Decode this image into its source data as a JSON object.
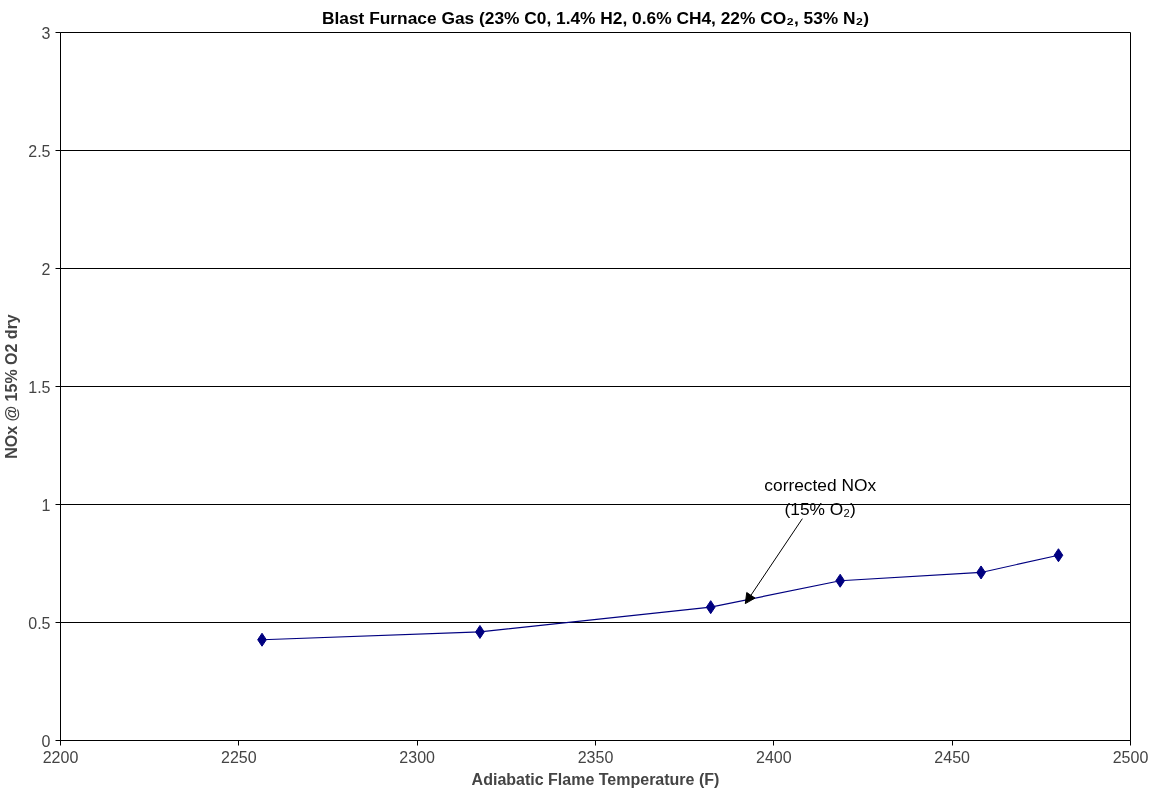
{
  "chart_data": {
    "type": "line",
    "title": "Blast Furnace Gas (23% C0, 1.4% H2, 0.6% CH4, 22% CO₂, 53% N₂)",
    "xlabel": "Adiabatic Flame Temperature (F)",
    "ylabel": "NOx @ 15% O2 dry",
    "x": [
      2256.5,
      2317.6,
      2382.3,
      2418.6,
      2458.1,
      2479.8
    ],
    "series": [
      {
        "color": "#000080",
        "values": [
          0.427,
          0.46,
          0.565,
          0.677,
          0.712,
          0.785
        ]
      }
    ],
    "xlim": [
      2200,
      2500
    ],
    "xticks": [
      2200,
      2250,
      2300,
      2350,
      2400,
      2450,
      2500
    ],
    "ylim": [
      0,
      3
    ],
    "yticks": [
      0,
      0.5,
      1,
      1.5,
      2,
      2.5,
      3
    ],
    "grid": "y",
    "marker": "diamond",
    "line_style": "solid",
    "annotations": [
      {
        "text": "corrected NOx\n(15% O₂)",
        "x": 2392,
        "y": 0.58
      }
    ]
  }
}
